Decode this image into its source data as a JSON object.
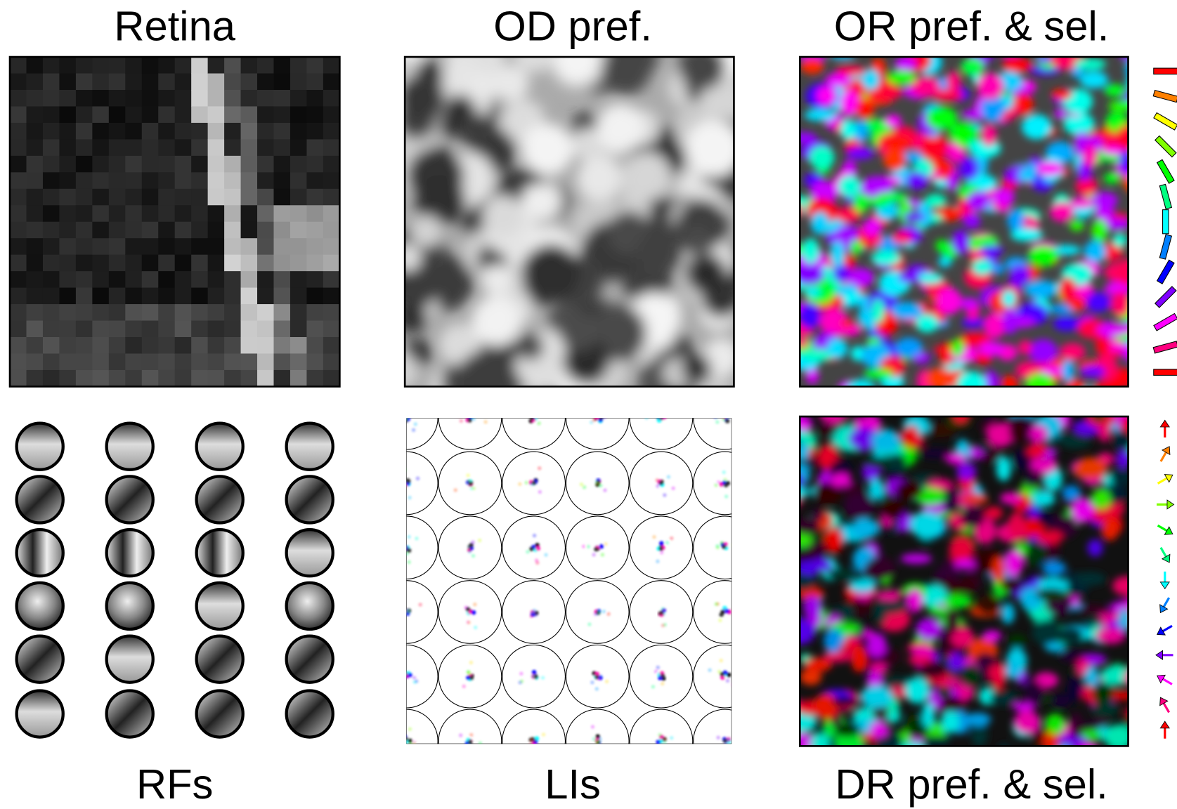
{
  "panels": {
    "retina": {
      "title": "Retina"
    },
    "od": {
      "title": "OD pref."
    },
    "or": {
      "title": "OR pref. & sel."
    },
    "rfs": {
      "title": "RFs"
    },
    "lis": {
      "title": "LIs"
    },
    "dr": {
      "title": "DR pref. & sel."
    }
  }
}
